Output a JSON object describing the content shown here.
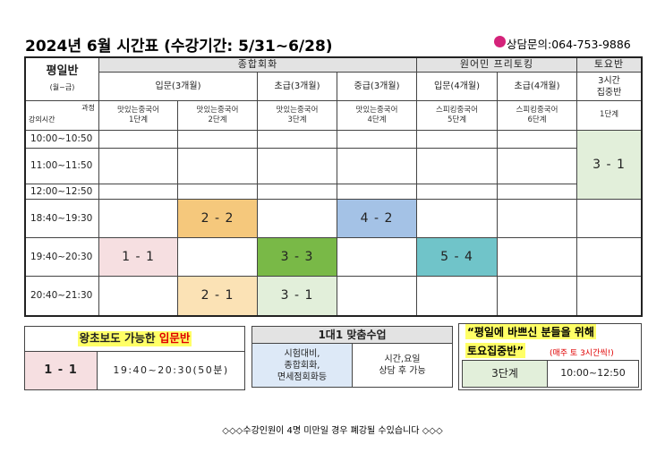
{
  "header": {
    "title": "2024년 6월 시간표 (수강기간: 5/31~6/28)",
    "contact": "상담문의:064-753-9886"
  },
  "table": {
    "corner": {
      "title": "평일반",
      "subtitle": "(월~금)",
      "course_label": "과정",
      "time_label": "강의시간"
    },
    "groups": [
      "종합회화",
      "원어민 프리토킹",
      "토요반"
    ],
    "levels": [
      "입문(3개월)",
      "초급(3개월)",
      "중급(3개월)",
      "입문(4개월)",
      "초급(4개월)"
    ],
    "saturday_level": [
      "3시간",
      "집중반"
    ],
    "courses": [
      [
        "맛있는중국어",
        "1단계"
      ],
      [
        "맛있는중국어",
        "2단계"
      ],
      [
        "맛있는중국어",
        "3단계"
      ],
      [
        "맛있는중국어",
        "4단계"
      ],
      [
        "스피킹중국어",
        "5단계"
      ],
      [
        "스피킹중국어",
        "6단계"
      ],
      [
        "1단계"
      ]
    ],
    "times": [
      "10:00~10:50",
      "11:00~11:50",
      "12:00~12:50",
      "18:40~19:30",
      "19:40~20:30",
      "20:40~21:30"
    ],
    "classes": [
      {
        "label": "3 - 1",
        "color": "#e2efda"
      },
      {
        "label": "2 - 2",
        "color": "#f5c87c"
      },
      {
        "label": "4 - 2",
        "color": "#a4c2e6"
      },
      {
        "label": "1 - 1",
        "color": "#f6dfe1"
      },
      {
        "label": "3 - 3",
        "color": "#79b947"
      },
      {
        "label": "5 - 4",
        "color": "#70c4c9"
      },
      {
        "label": "2 - 1",
        "color": "#fbe2b5"
      },
      {
        "label": "3 - 1",
        "color": "#e2efda"
      }
    ]
  },
  "notes": {
    "beginner": {
      "title": "왕초보도 가능한 ",
      "highlight": "입문반",
      "class": "1 - 1",
      "time": "19:40~20:30(50분)"
    },
    "private": {
      "title": "1대1 맞춤수업",
      "topics": [
        "시험대비,",
        "종합회화,",
        "면세점회화등"
      ],
      "schedule": [
        "시간,요일",
        "상담 후 가능"
      ]
    },
    "saturday": {
      "line1": "“평일에 바쁘신 분들을 위해",
      "line2": "토요집중반”",
      "note": "(매주 토 3시간씩!)",
      "level": "3단계",
      "time": "10:00~12:50"
    }
  },
  "footer": "◇◇◇수강인원이 4명 미만일 경우 폐강될 수있습니다 ◇◇◇"
}
